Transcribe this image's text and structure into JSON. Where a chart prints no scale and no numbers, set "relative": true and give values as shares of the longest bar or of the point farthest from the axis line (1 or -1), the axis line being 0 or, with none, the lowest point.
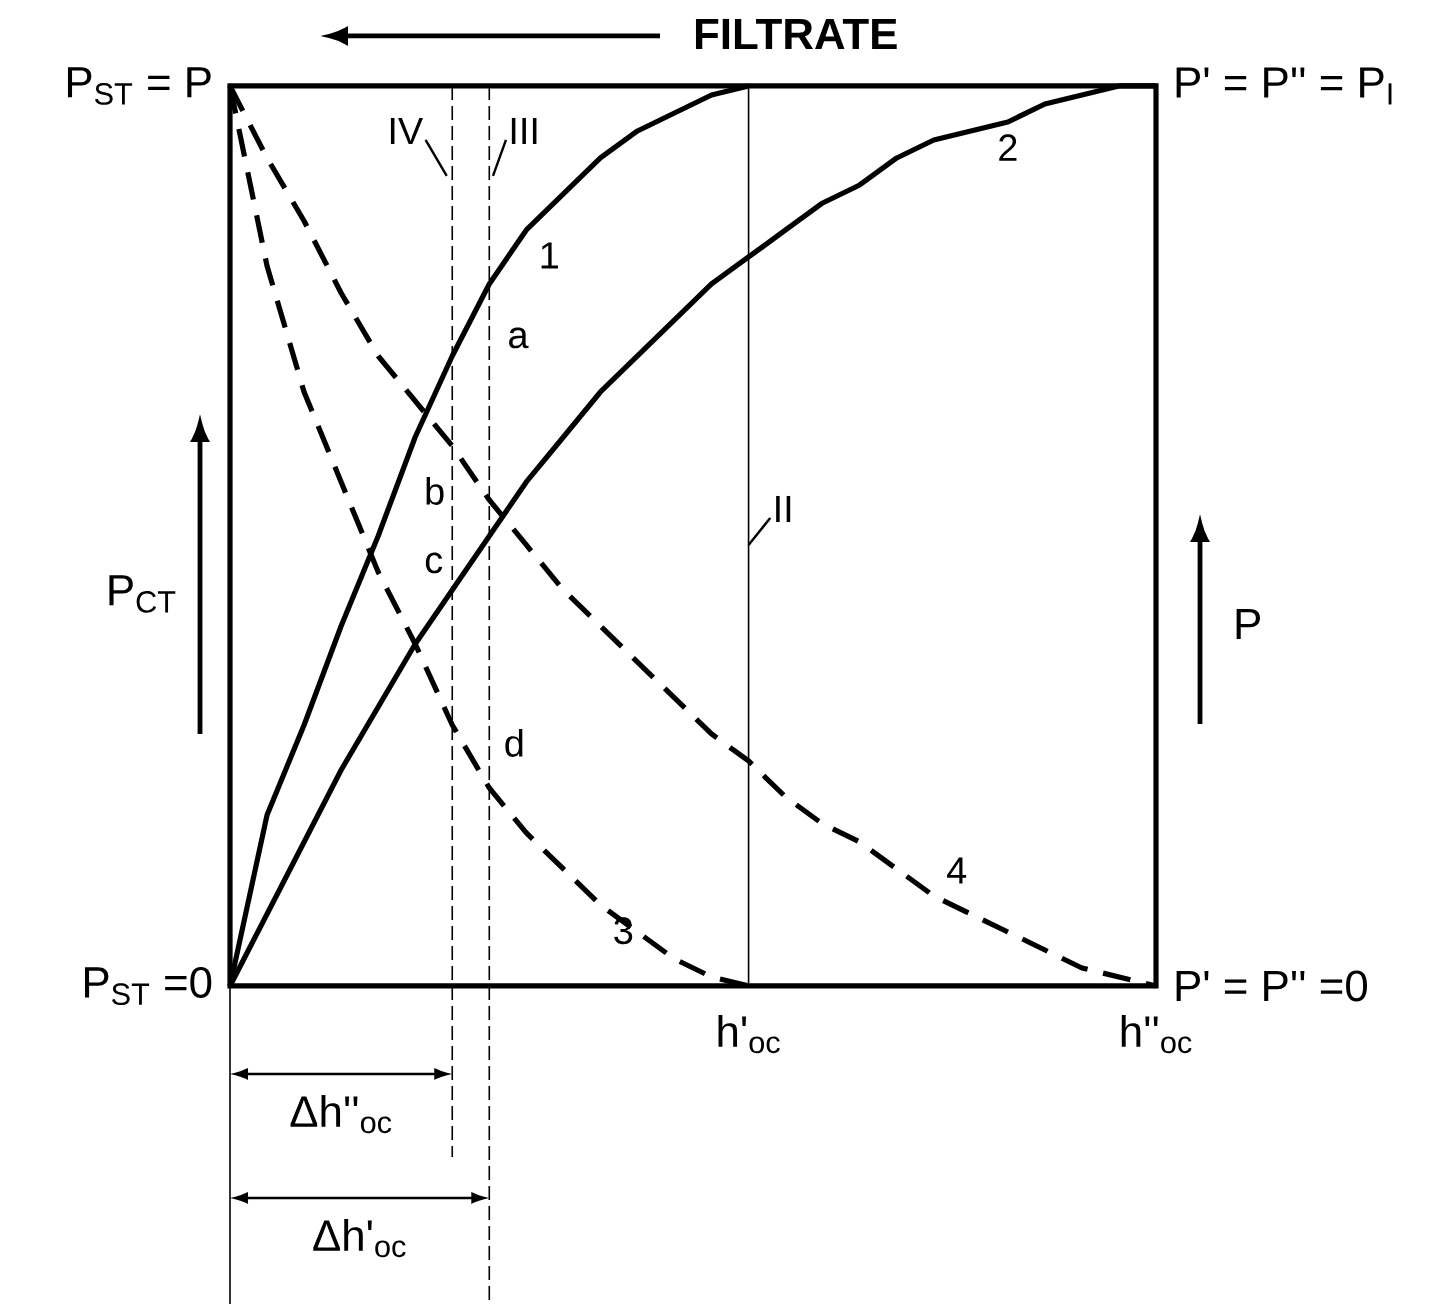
{
  "chart_data": {
    "type": "line",
    "relative": true,
    "legend": false,
    "categories": [
      null,
      null,
      null,
      null,
      null,
      null,
      null,
      null,
      null,
      null,
      null,
      null,
      null,
      null,
      null,
      null,
      null,
      null,
      null,
      null,
      null,
      null,
      null,
      null,
      null,
      null
    ],
    "series": [
      {
        "name": "1",
        "color": "#000000",
        "line_style": "solid",
        "values": [
          0,
          0.19,
          0.29,
          0.4,
          0.5,
          0.61,
          0.7,
          0.78,
          0.84,
          0.88,
          0.92,
          0.95,
          0.97,
          0.99,
          1,
          null,
          null,
          null,
          null,
          null,
          null,
          null,
          null,
          null,
          null,
          null
        ]
      },
      {
        "name": "2",
        "color": "#000000",
        "line_style": "solid",
        "values": [
          0,
          0.08,
          0.16,
          0.24,
          0.31,
          0.38,
          0.44,
          0.5,
          0.56,
          0.61,
          0.66,
          0.7,
          0.74,
          0.78,
          0.81,
          0.84,
          0.87,
          0.89,
          0.92,
          0.94,
          0.95,
          0.96,
          0.98,
          0.99,
          1,
          1
        ]
      },
      {
        "name": "3",
        "color": "#000000",
        "line_style": "dashed",
        "values": [
          1,
          0.8,
          0.66,
          0.56,
          0.46,
          0.38,
          0.29,
          0.22,
          0.17,
          0.13,
          0.09,
          0.06,
          0.03,
          0.01,
          0,
          null,
          null,
          null,
          null,
          null,
          null,
          null,
          null,
          null,
          null,
          null
        ]
      },
      {
        "name": "4",
        "color": "#000000",
        "line_style": "dashed",
        "values": [
          1,
          0.92,
          0.85,
          0.77,
          0.7,
          0.65,
          0.6,
          0.54,
          0.49,
          0.44,
          0.4,
          0.36,
          0.32,
          0.28,
          0.25,
          0.21,
          0.18,
          0.16,
          0.13,
          0.1,
          0.08,
          0.06,
          0.04,
          0.02,
          0.01,
          0
        ]
      }
    ],
    "annotations": [
      "P$_{ST}$ = P",
      "P$_{ST}$ =0",
      "P' = P'' = P$_{I}$",
      "P' = P'' =0",
      "FILTRATE",
      "P$_{CT}$",
      "P",
      "Δh''$_{oc}$",
      "Δh'$_{oc}$",
      "a",
      "b",
      "c",
      "d",
      "h'$_{oc}$",
      "h''$_{oc}$",
      "IV",
      "III",
      "II"
    ]
  }
}
